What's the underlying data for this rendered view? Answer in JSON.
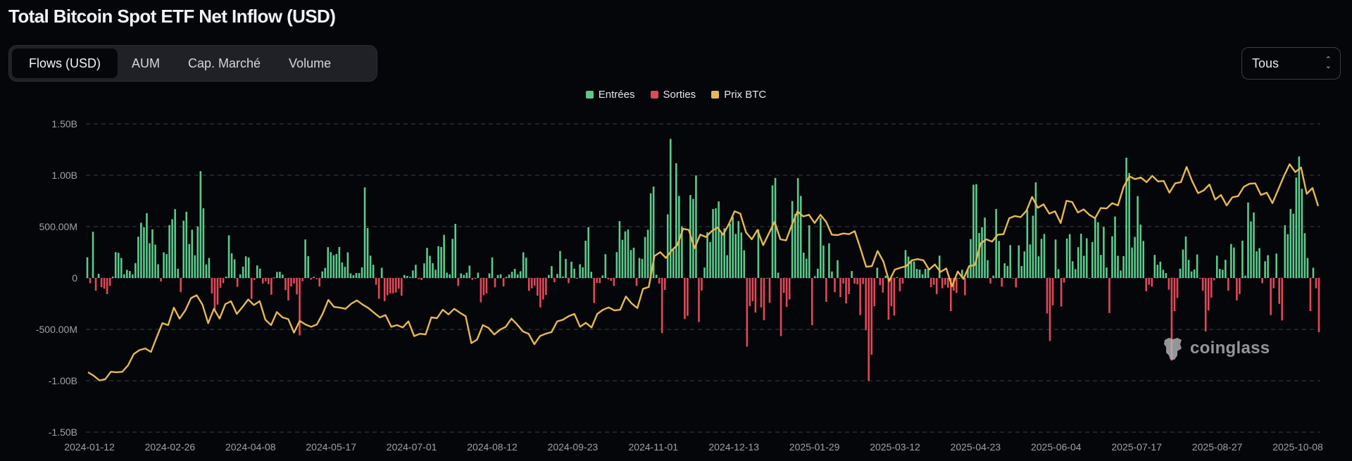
{
  "header": {
    "title": "Total Bitcoin Spot ETF Net Inflow (USD)"
  },
  "tabs": [
    {
      "label": "Flows (USD)",
      "active": true
    },
    {
      "label": "AUM",
      "active": false
    },
    {
      "label": "Cap. Marché",
      "active": false
    },
    {
      "label": "Volume",
      "active": false
    }
  ],
  "range_select": {
    "value": "Tous"
  },
  "watermark": "coinglass",
  "chart_data": {
    "type": "bar+line",
    "title": "Total Bitcoin Spot ETF Net Inflow (USD)",
    "legend": [
      {
        "name": "Entrées",
        "color": "#5cc98a"
      },
      {
        "name": "Sorties",
        "color": "#e04857"
      },
      {
        "name": "Prix BTC",
        "color": "#e8b94f"
      }
    ],
    "legend_position": "top-center",
    "grid": true,
    "ylim": [
      -1500000000,
      1500000000
    ],
    "y_ticks": [
      "1.50B",
      "1.00B",
      "500.00M",
      "0",
      "-500.00M",
      "-1.00B",
      "-1.50B"
    ],
    "y_tick_values": [
      1500,
      1000,
      500,
      0,
      -500,
      -1000,
      -1500
    ],
    "x_ticks": [
      "2024-01-12",
      "2024-02-26",
      "2024-04-08",
      "2024-05-17",
      "2024-07-01",
      "2024-08-12",
      "2024-09-23",
      "2024-11-01",
      "2024-12-13",
      "2025-01-29",
      "2025-03-12",
      "2025-04-23",
      "2025-06-04",
      "2025-07-17",
      "2025-08-27",
      "2025-10-08"
    ],
    "x_range": [
      "2024-01-11",
      "2025-10-10"
    ],
    "flow_unit": "million USD",
    "daily_net_flows": [
      202,
      -50,
      450,
      -123,
      41,
      -89,
      -104,
      -157,
      -77,
      14,
      252,
      245,
      195,
      36,
      80,
      68,
      34,
      145,
      402,
      538,
      493,
      631,
      338,
      474,
      325,
      134,
      -34,
      250,
      232,
      515,
      572,
      670,
      91,
      -138,
      558,
      645,
      331,
      470,
      222,
      502,
      1040,
      679,
      132,
      195,
      -150,
      -322,
      -259,
      -95,
      -50,
      14,
      415,
      241,
      182,
      -86,
      36,
      111,
      211,
      200,
      -204,
      -20,
      123,
      91,
      -54,
      -32,
      -59,
      -163,
      5,
      59,
      61,
      32,
      -118,
      -218,
      -82,
      -54,
      -159,
      -558,
      -32,
      375,
      213,
      -16,
      11,
      -11,
      -82,
      64,
      98,
      300,
      252,
      222,
      234,
      302,
      152,
      109,
      250,
      45,
      27,
      48,
      48,
      104,
      881,
      486,
      218,
      129,
      -66,
      -202,
      100,
      -225,
      -168,
      -150,
      -150,
      -141,
      -104,
      -172,
      30,
      20,
      11,
      73,
      129,
      -11,
      -20,
      143,
      293,
      216,
      145,
      80,
      309,
      302,
      420,
      52,
      36,
      381,
      527,
      -77,
      45,
      30,
      52,
      120,
      -18,
      0,
      52,
      -236,
      -168,
      -150,
      45,
      200,
      -91,
      30,
      36,
      -82,
      11,
      34,
      61,
      89,
      36,
      66,
      250,
      198,
      -125,
      -100,
      -75,
      -172,
      -286,
      -209,
      -166,
      30,
      116,
      -41,
      39,
      263,
      14,
      186,
      -50,
      159,
      91,
      0,
      134,
      104,
      363,
      495,
      61,
      -243,
      -48,
      -50,
      25,
      232,
      -14,
      -27,
      -77,
      252,
      554,
      372,
      454,
      472,
      272,
      295,
      -77,
      195,
      186,
      400,
      470,
      824,
      890,
      32,
      -54,
      -536,
      -116,
      620,
      1353,
      291,
      1117,
      799,
      504,
      -400,
      -368,
      808,
      770,
      999,
      -429,
      -123,
      102,
      445,
      350,
      672,
      679,
      745,
      436,
      484,
      222,
      529,
      595,
      429,
      554,
      443,
      270,
      -667,
      -275,
      -225,
      -336,
      472,
      -286,
      -411,
      0,
      -241,
      901,
      974,
      52,
      -565,
      -145,
      -281,
      -209,
      749,
      624,
      972,
      799,
      247,
      188,
      513,
      -459,
      18,
      91,
      586,
      316,
      -232,
      338,
      64,
      -138,
      173,
      -186,
      -54,
      -247,
      -157,
      68,
      -54,
      -61,
      -361,
      -59,
      -509,
      -1003,
      -747,
      -275,
      100,
      -70,
      -141,
      23,
      -406,
      -275,
      -365,
      9,
      -129,
      -54,
      272,
      209,
      173,
      161,
      89,
      82,
      36,
      89,
      89,
      -89,
      -66,
      -157,
      218,
      -100,
      -66,
      -95,
      -322,
      -123,
      -145,
      0,
      80,
      -168,
      84,
      379,
      908,
      913,
      438,
      495,
      588,
      173,
      -54,
      23,
      672,
      361,
      -84,
      143,
      118,
      320,
      0,
      -91,
      318,
      116,
      259,
      663,
      327,
      606,
      931,
      211,
      381,
      429,
      -345,
      -613,
      -266,
      375,
      86,
      -277,
      -45,
      384,
      427,
      163,
      86,
      300,
      431,
      216,
      386,
      0,
      350,
      586,
      543,
      225,
      497,
      102,
      -341,
      406,
      599,
      216,
      73,
      213,
      1171,
      1022,
      297,
      400,
      797,
      520,
      361,
      -129,
      -66,
      -84,
      225,
      129,
      159,
      80,
      48,
      -114,
      -804,
      -322,
      -195,
      91,
      277,
      404,
      177,
      64,
      82,
      229,
      -9,
      -123,
      -520,
      -316,
      -191,
      -23,
      218,
      89,
      80,
      177,
      -123,
      331,
      297,
      -218,
      -157,
      363,
      23,
      735,
      552,
      638,
      259,
      291,
      -50,
      163,
      222,
      -361,
      -100,
      238,
      -252,
      -413,
      513,
      427,
      672,
      626,
      978,
      1183,
      869,
      436,
      195,
      -322,
      100,
      -100,
      -527
    ],
    "btc_price_usd": [
      44317,
      42955,
      41130,
      41590,
      44500,
      44320,
      44500,
      47040,
      51400,
      52940,
      53580,
      52220,
      57940,
      63400,
      62660,
      69470,
      65200,
      68380,
      73190,
      74280,
      70650,
      63400,
      69000,
      65200,
      70830,
      71920,
      67020,
      69740,
      72650,
      70470,
      72000,
      64750,
      62660,
      67740,
      65650,
      65000,
      59750,
      64290,
      62930,
      62020,
      62930,
      67020,
      72470,
      69740,
      69470,
      69000,
      71000,
      72280,
      70650,
      69290,
      67470,
      65650,
      66560,
      62020,
      62660,
      61750,
      64110,
      58390,
      59300,
      59030,
      65650,
      65380,
      68650,
      66830,
      69010,
      67470,
      66110,
      55670,
      57030,
      62660,
      61570,
      59030,
      60840,
      62020,
      65200,
      62930,
      60200,
      59300,
      55210,
      58390,
      59300,
      59940,
      64110,
      64750,
      66110,
      67020,
      62020,
      63570,
      61750,
      67020,
      68650,
      69560,
      68380,
      68650,
      73830,
      71100,
      69290,
      76820,
      77460,
      89540,
      91080,
      88810,
      91710,
      93800,
      100160,
      99710,
      92620,
      97890,
      96980,
      99250,
      100610,
      97890,
      101980,
      106970,
      106060,
      98800,
      96070,
      99710,
      93800,
      98340,
      102880,
      96070,
      95620,
      101520,
      106970,
      104970,
      105610,
      102430,
      105610,
      102880,
      97890,
      97710,
      98340,
      98070,
      99250,
      92440,
      85360,
      85630,
      91530,
      87450,
      79730,
      84270,
      85000,
      85630,
      87900,
      88350,
      87900,
      84270,
      86270,
      83360,
      84720,
      77730,
      83540,
      80640,
      85630,
      86080,
      94440,
      96070,
      95160,
      97890,
      98070,
      104250,
      105150,
      104700,
      107150,
      112600,
      108330,
      109690,
      106060,
      106970,
      102430,
      111050,
      110600,
      106510,
      107700,
      105610,
      104250,
      108240,
      108060,
      110150,
      109240,
      116500,
      120590,
      119500,
      120130,
      118320,
      120770,
      118590,
      118770,
      114230,
      117870,
      118320,
      124220,
      118590,
      114050,
      115140,
      117410,
      111510,
      113320,
      109240,
      112420,
      112870,
      116500,
      117680,
      117870,
      113320,
      114230,
      110150,
      115320,
      120590,
      125310,
      122220,
      124040,
      113770,
      116050,
      108970
    ],
    "price_axis_hidden": true,
    "y2lim": [
      21000,
      141000
    ]
  }
}
